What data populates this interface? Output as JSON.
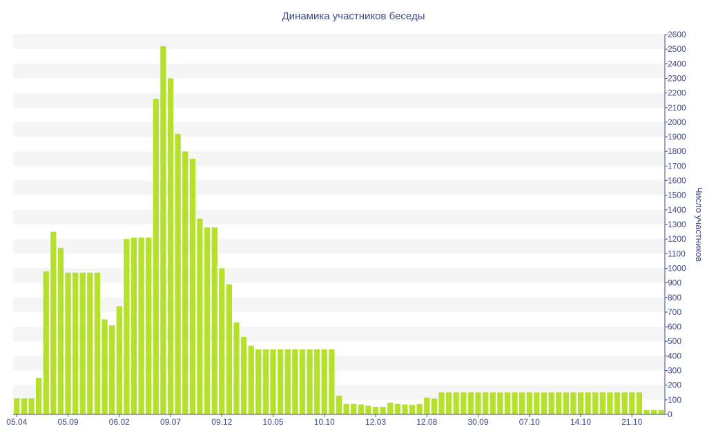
{
  "chart_data": {
    "type": "bar",
    "title": "Динамика участников беседы",
    "xlabel": "",
    "ylabel": "Число участников",
    "ylim": [
      0,
      2600
    ],
    "ytick_step": 100,
    "grid": "horizontal bands",
    "y_axis_position": "right",
    "colors": {
      "bar": "#b5e02c",
      "band": "#f5f5f5",
      "axis": "#3e4a86",
      "text": "#3e4a86"
    },
    "x_tick_labels": [
      {
        "label": "05.04",
        "index": 0
      },
      {
        "label": "05.09",
        "index": 7
      },
      {
        "label": "06.02",
        "index": 14
      },
      {
        "label": "09.07",
        "index": 21
      },
      {
        "label": "09.12",
        "index": 28
      },
      {
        "label": "10.05",
        "index": 35
      },
      {
        "label": "10.10",
        "index": 42
      },
      {
        "label": "12.03",
        "index": 49
      },
      {
        "label": "12.08",
        "index": 56
      },
      {
        "label": "30.09",
        "index": 63
      },
      {
        "label": "07.10",
        "index": 70
      },
      {
        "label": "14.10",
        "index": 77
      },
      {
        "label": "21.10",
        "index": 84
      }
    ],
    "values": [
      110,
      110,
      110,
      250,
      980,
      1250,
      1140,
      970,
      970,
      970,
      970,
      970,
      650,
      610,
      740,
      1200,
      1210,
      1210,
      1210,
      2160,
      2520,
      2300,
      1920,
      1800,
      1750,
      1340,
      1280,
      1280,
      1000,
      890,
      630,
      530,
      470,
      445,
      445,
      445,
      445,
      445,
      445,
      445,
      445,
      445,
      445,
      445,
      128,
      72,
      72,
      68,
      60,
      52,
      52,
      80,
      72,
      68,
      65,
      72,
      115,
      108,
      150,
      150,
      150,
      150,
      150,
      150,
      150,
      150,
      150,
      150,
      150,
      150,
      150,
      150,
      150,
      150,
      150,
      150,
      150,
      150,
      150,
      150,
      150,
      150,
      150,
      150,
      150,
      150,
      30,
      30,
      30
    ]
  }
}
